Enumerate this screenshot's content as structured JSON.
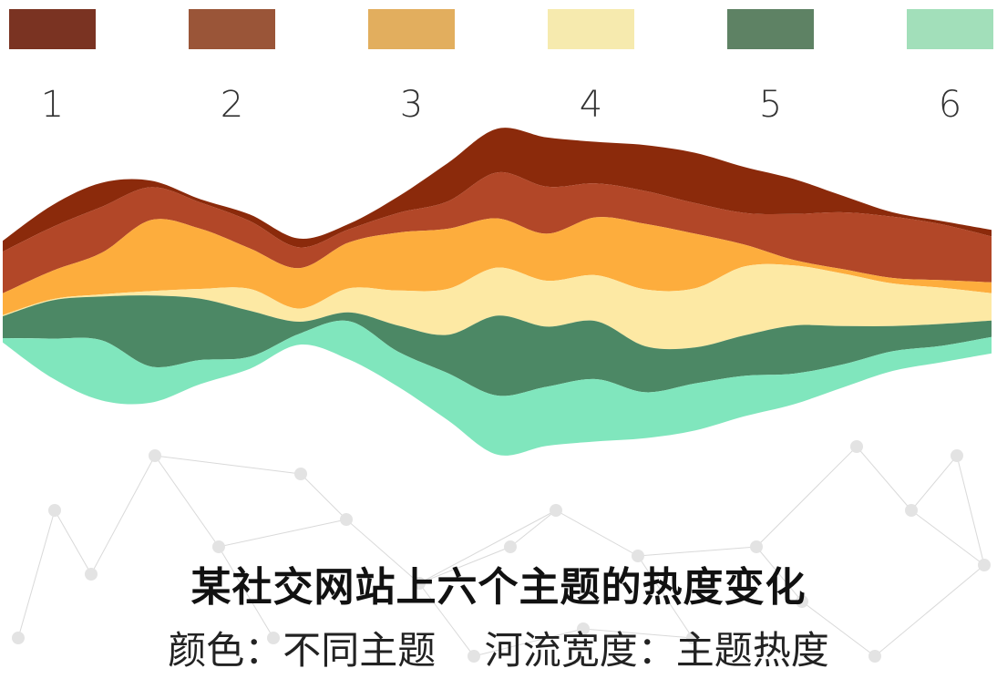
{
  "legend": [
    {
      "label": "1",
      "color": "#7a3322"
    },
    {
      "label": "2",
      "color": "#9a5538"
    },
    {
      "label": "3",
      "color": "#e2ae5e"
    },
    {
      "label": "4",
      "color": "#f6eaae"
    },
    {
      "label": "5",
      "color": "#5e8264"
    },
    {
      "label": "6",
      "color": "#a2dfba"
    }
  ],
  "caption": {
    "title": "某社交网站上六个主题的热度变化",
    "subtitle": "颜色：不同主题    河流宽度：主题热度"
  },
  "chart_data": {
    "type": "area",
    "layout": "streamgraph",
    "title": "某社交网站上六个主题的热度变化",
    "xlabel": "",
    "ylabel": "",
    "grid": false,
    "legend_position": "top",
    "x": [
      0,
      1,
      2,
      3,
      4,
      5,
      6,
      7,
      8,
      9,
      10,
      11,
      12,
      13,
      14,
      15,
      16,
      17,
      18,
      19,
      20
    ],
    "series": [
      {
        "name": "1",
        "color": "#8b2a0b",
        "values": [
          1.0,
          2.0,
          2.2,
          0.6,
          0.3,
          0.6,
          0.8,
          0.5,
          1.5,
          3.5,
          4.0,
          4.5,
          3.8,
          4.2,
          4.6,
          4.2,
          3.2,
          1.5,
          0.4,
          0.3,
          0.6
        ]
      },
      {
        "name": "2",
        "color": "#b24728",
        "values": [
          3.8,
          4.0,
          4.2,
          3.0,
          2.4,
          2.5,
          1.9,
          1.2,
          1.8,
          2.5,
          4.2,
          4.3,
          3.1,
          3.0,
          2.8,
          2.9,
          4.2,
          5.2,
          5.6,
          5.1,
          4.2
        ]
      },
      {
        "name": "3",
        "color": "#fdad3d",
        "values": [
          2.0,
          2.6,
          3.8,
          6.5,
          5.5,
          3.7,
          3.7,
          4.2,
          5.3,
          5.5,
          4.5,
          4.3,
          5.3,
          6.0,
          5.0,
          2.0,
          0.5,
          0.4,
          0.5,
          0.7,
          1.0
        ]
      },
      {
        "name": "4",
        "color": "#fde9a4",
        "values": [
          0.1,
          0.1,
          0.2,
          0.4,
          0.9,
          2.0,
          1.2,
          2.2,
          3.2,
          4.2,
          4.4,
          4.2,
          4.2,
          5.2,
          5.4,
          6.3,
          5.5,
          4.8,
          3.9,
          3.3,
          2.5
        ]
      },
      {
        "name": "5",
        "color": "#4c8865",
        "values": [
          2.0,
          3.5,
          4.0,
          6.5,
          5.6,
          4.2,
          1.1,
          0.8,
          2.4,
          3.5,
          7.3,
          5.5,
          5.3,
          4.2,
          3.3,
          3.7,
          4.4,
          3.5,
          2.3,
          2.0,
          1.5
        ]
      },
      {
        "name": "6",
        "color": "#80e6bd",
        "values": [
          0.4,
          3.6,
          5.5,
          3.3,
          2.2,
          1.1,
          1.0,
          3.5,
          3.2,
          4.3,
          5.4,
          5.4,
          5.7,
          4.2,
          4.3,
          3.7,
          2.8,
          2.1,
          1.8,
          1.5,
          1.5
        ]
      }
    ]
  }
}
